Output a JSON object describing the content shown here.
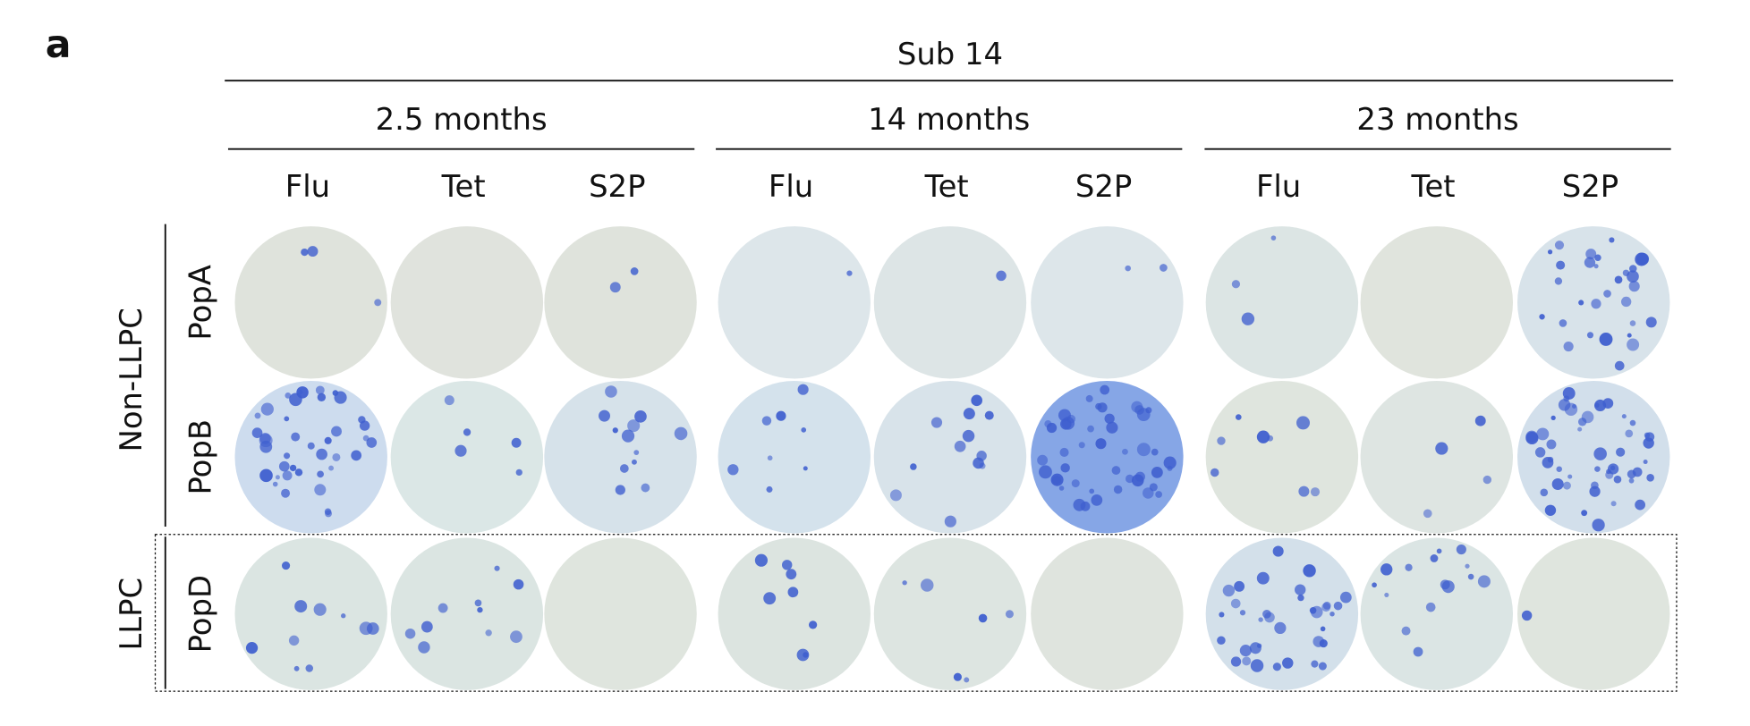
{
  "panel_label": "a",
  "title": "Sub 14",
  "groups": [
    {
      "label": "2.5 months",
      "columns": [
        "Flu",
        "Tet",
        "S2P"
      ]
    },
    {
      "label": "14 months",
      "columns": [
        "Flu",
        "Tet",
        "S2P"
      ]
    },
    {
      "label": "23 months",
      "columns": [
        "Flu",
        "Tet",
        "S2P"
      ]
    }
  ],
  "row_groups": [
    {
      "label": "Non-LLPC",
      "rows": [
        "PopA",
        "PopB"
      ]
    },
    {
      "label": "LLPC",
      "rows": [
        "PopD"
      ]
    }
  ]
}
